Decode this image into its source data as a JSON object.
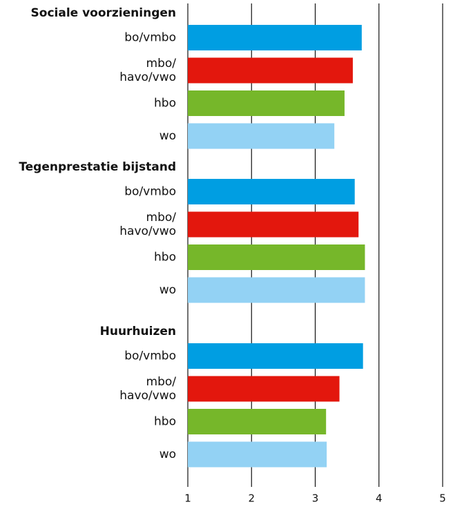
{
  "chart_data": {
    "type": "bar",
    "orientation": "horizontal",
    "colors": [
      "#009ee2",
      "#e3170d",
      "#76b72a",
      "#93d2f4"
    ],
    "xlim": [
      1,
      5
    ],
    "xticks": [
      1,
      2,
      3,
      4,
      5
    ],
    "grid": true,
    "groups": [
      {
        "name": "Sociale voorzieningen",
        "categories": [
          "bo/vmbo",
          "mbo/\nhavo/vwo",
          "hbo",
          "wo"
        ],
        "values": [
          3.73,
          3.59,
          3.46,
          3.3
        ]
      },
      {
        "name": "Tegenprestatie bijstand",
        "categories": [
          "bo/vmbo",
          "mbo/\nhavo/vwo",
          "hbo",
          "wo"
        ],
        "values": [
          3.62,
          3.68,
          3.78,
          3.78
        ]
      },
      {
        "name": "Huurhuizen",
        "categories": [
          "bo/vmbo",
          "mbo/\nhavo/vwo",
          "hbo",
          "wo"
        ],
        "values": [
          3.75,
          3.38,
          3.17,
          3.18
        ]
      }
    ]
  }
}
